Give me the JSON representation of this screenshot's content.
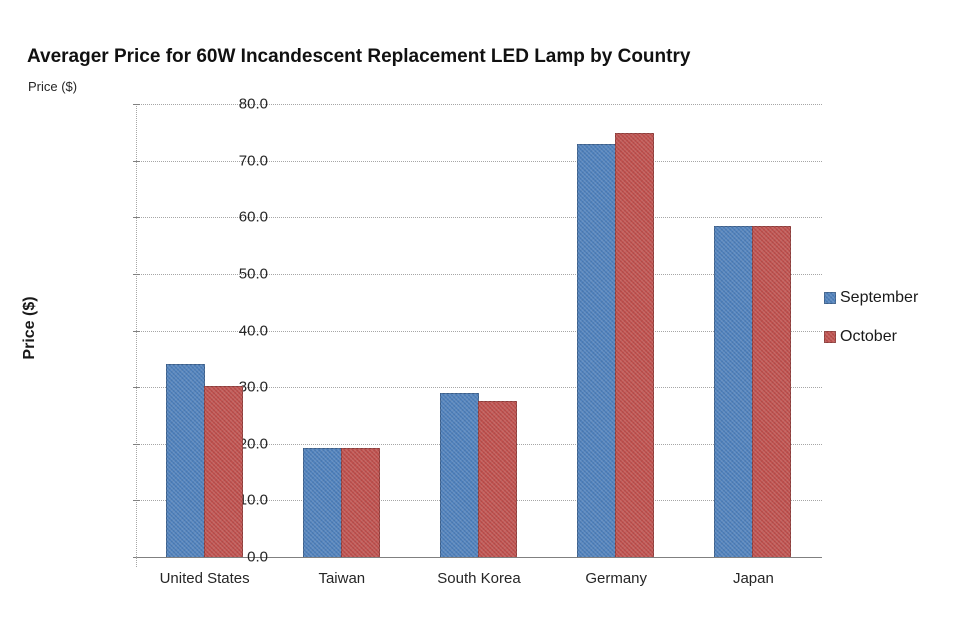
{
  "colors": {
    "september_blue": "#4F81BD",
    "october_red": "#C0504D",
    "gridline": "#a6a6a6",
    "axis": "#808080",
    "text": "#262626"
  },
  "chart_data": {
    "type": "bar",
    "title": "Averager Price for 60W Incandescent Replacement LED Lamp by Country",
    "top_axis_label": "Price ($)",
    "ylabel": "Price ($)",
    "xlabel": "",
    "categories": [
      "United States",
      "Taiwan",
      "South Korea",
      "Germany",
      "Japan"
    ],
    "series": [
      {
        "name": "September",
        "color": "#4F81BD",
        "values": [
          34.0,
          19.2,
          29.0,
          72.9,
          58.4
        ]
      },
      {
        "name": "October",
        "color": "#C0504D",
        "values": [
          30.2,
          19.3,
          27.5,
          74.9,
          58.5
        ]
      }
    ],
    "ylim": [
      0,
      80
    ],
    "ytick_step": 10,
    "ytick_decimals": 1,
    "grid": true,
    "legend_position": "right"
  }
}
